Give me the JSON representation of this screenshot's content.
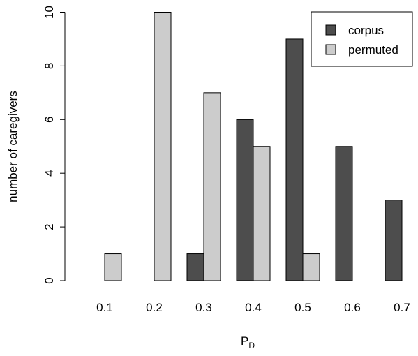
{
  "chart_data": {
    "type": "bar",
    "categories": [
      "0.1",
      "0.2",
      "0.3",
      "0.4",
      "0.5",
      "0.6",
      "0.7"
    ],
    "series": [
      {
        "name": "corpus",
        "color": "#4d4d4d",
        "values": [
          0,
          0,
          1,
          6,
          9,
          5,
          3
        ]
      },
      {
        "name": "permuted",
        "color": "#cccccc",
        "values": [
          1,
          10,
          7,
          5,
          1,
          0,
          0
        ]
      }
    ],
    "title": "",
    "xlabel": "P",
    "xlabel_subscript": "D",
    "ylabel": "number of caregivers",
    "yticks": [
      "0",
      "2",
      "4",
      "6",
      "8",
      "10"
    ],
    "ylim": [
      0,
      10
    ],
    "legend_position": "top-right",
    "grid": false,
    "bar_border_color": "#000000"
  }
}
